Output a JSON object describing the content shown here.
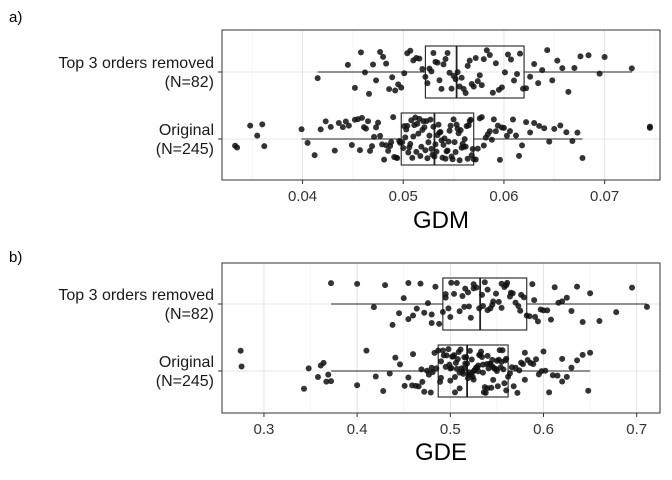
{
  "chart_data": [
    {
      "panel_label": "a)",
      "type": "boxplot",
      "xlabel": "GDM",
      "xlim": [
        0.032,
        0.0755
      ],
      "xticks": [
        0.04,
        0.05,
        0.06,
        0.07
      ],
      "xtick_labels": [
        "0.04",
        "0.05",
        "0.06",
        "0.07"
      ],
      "grid": true,
      "categories": [
        {
          "label": "Top 3 orders removed\n(N=82)",
          "min": 0.0415,
          "q1": 0.0522,
          "median": 0.0553,
          "q3": 0.062,
          "max": 0.0727,
          "points": [
            0.0415,
            0.0445,
            0.0452,
            0.0458,
            0.0462,
            0.0466,
            0.047,
            0.0473,
            0.0477,
            0.048,
            0.0483,
            0.0486,
            0.0489,
            0.0492,
            0.0495,
            0.0498,
            0.0501,
            0.0504,
            0.0507,
            0.051,
            0.0513,
            0.0516,
            0.0519,
            0.0522,
            0.0524,
            0.0526,
            0.0528,
            0.053,
            0.0532,
            0.0534,
            0.0536,
            0.0538,
            0.054,
            0.0542,
            0.0544,
            0.0546,
            0.0548,
            0.055,
            0.0552,
            0.0554,
            0.0556,
            0.0558,
            0.056,
            0.0562,
            0.0564,
            0.0566,
            0.0568,
            0.057,
            0.0572,
            0.0574,
            0.0576,
            0.0578,
            0.058,
            0.0583,
            0.0586,
            0.0589,
            0.0592,
            0.0595,
            0.0598,
            0.0601,
            0.0604,
            0.0607,
            0.061,
            0.0613,
            0.0616,
            0.0619,
            0.0622,
            0.0626,
            0.063,
            0.0634,
            0.0638,
            0.0643,
            0.0648,
            0.0653,
            0.0658,
            0.0664,
            0.067,
            0.0676,
            0.0684,
            0.0695,
            0.07,
            0.0727
          ]
        },
        {
          "label": "Original\n(N=245)",
          "min": 0.0399,
          "q1": 0.0498,
          "median": 0.0531,
          "q3": 0.057,
          "max": 0.0678,
          "points": [
            0.0333,
            0.0335,
            0.0348,
            0.0355,
            0.036,
            0.0362,
            0.0399,
            0.0405,
            0.0412,
            0.0418,
            0.0423,
            0.0428,
            0.0432,
            0.0436,
            0.044,
            0.0443,
            0.0446,
            0.0449,
            0.0452,
            0.0455,
            0.0457,
            0.0459,
            0.0461,
            0.0463,
            0.0465,
            0.0467,
            0.0469,
            0.0471,
            0.0473,
            0.0475,
            0.0477,
            0.0479,
            0.0481,
            0.0483,
            0.0485,
            0.0487,
            0.0488,
            0.049,
            0.0491,
            0.0493,
            0.0494,
            0.0496,
            0.0497,
            0.0499,
            0.05,
            0.0501,
            0.0502,
            0.0503,
            0.0504,
            0.0505,
            0.0506,
            0.0507,
            0.0508,
            0.0509,
            0.051,
            0.0511,
            0.0512,
            0.0513,
            0.0514,
            0.0515,
            0.0516,
            0.0517,
            0.0518,
            0.0519,
            0.052,
            0.0521,
            0.0522,
            0.0523,
            0.0524,
            0.0525,
            0.0526,
            0.0527,
            0.0528,
            0.0529,
            0.053,
            0.0531,
            0.0532,
            0.0533,
            0.0534,
            0.0535,
            0.0536,
            0.0537,
            0.0538,
            0.0539,
            0.054,
            0.0541,
            0.0542,
            0.0543,
            0.0544,
            0.0545,
            0.0546,
            0.0547,
            0.0548,
            0.0549,
            0.055,
            0.0551,
            0.0552,
            0.0553,
            0.0554,
            0.0555,
            0.0556,
            0.0557,
            0.0558,
            0.0559,
            0.056,
            0.0561,
            0.0562,
            0.0563,
            0.0564,
            0.0565,
            0.0566,
            0.0567,
            0.0568,
            0.0569,
            0.057,
            0.0572,
            0.0574,
            0.0576,
            0.0578,
            0.058,
            0.0582,
            0.0584,
            0.0586,
            0.0588,
            0.059,
            0.0592,
            0.0594,
            0.0596,
            0.0598,
            0.06,
            0.0603,
            0.0606,
            0.0609,
            0.0612,
            0.0615,
            0.0618,
            0.0622,
            0.0626,
            0.063,
            0.0635,
            0.064,
            0.0645,
            0.065,
            0.0656,
            0.0662,
            0.0668,
            0.0673,
            0.0678,
            0.0745,
            0.0745
          ]
        }
      ]
    },
    {
      "panel_label": "b)",
      "type": "boxplot",
      "xlabel": "GDE",
      "xlim": [
        0.255,
        0.725
      ],
      "xticks": [
        0.3,
        0.4,
        0.5,
        0.6,
        0.7
      ],
      "xtick_labels": [
        "0.3",
        "0.4",
        "0.5",
        "0.6",
        "0.7"
      ],
      "grid": true,
      "categories": [
        {
          "label": "Top 3 orders removed\n(N=82)",
          "min": 0.372,
          "q1": 0.492,
          "median": 0.532,
          "q3": 0.582,
          "max": 0.711,
          "points": [
            0.372,
            0.4,
            0.418,
            0.43,
            0.438,
            0.445,
            0.45,
            0.455,
            0.46,
            0.464,
            0.468,
            0.472,
            0.476,
            0.48,
            0.484,
            0.488,
            0.492,
            0.495,
            0.498,
            0.501,
            0.504,
            0.507,
            0.51,
            0.513,
            0.516,
            0.519,
            0.522,
            0.525,
            0.528,
            0.531,
            0.534,
            0.537,
            0.54,
            0.543,
            0.546,
            0.549,
            0.552,
            0.555,
            0.558,
            0.561,
            0.564,
            0.567,
            0.57,
            0.573,
            0.576,
            0.579,
            0.582,
            0.585,
            0.588,
            0.591,
            0.594,
            0.597,
            0.6,
            0.604,
            0.608,
            0.612,
            0.616,
            0.62,
            0.625,
            0.63,
            0.636,
            0.642,
            0.65,
            0.66,
            0.678,
            0.695,
            0.711,
            0.48,
            0.5,
            0.52,
            0.54,
            0.56,
            0.455,
            0.515,
            0.535,
            0.555,
            0.575,
            0.495,
            0.525,
            0.545,
            0.565,
            0.59
          ]
        },
        {
          "label": "Original\n(N=245)",
          "min": 0.372,
          "q1": 0.487,
          "median": 0.518,
          "q3": 0.562,
          "max": 0.65,
          "points": [
            0.275,
            0.276,
            0.343,
            0.348,
            0.358,
            0.361,
            0.364,
            0.367,
            0.369,
            0.372,
            0.4,
            0.41,
            0.42,
            0.428,
            0.435,
            0.441,
            0.446,
            0.451,
            0.455,
            0.459,
            0.463,
            0.466,
            0.469,
            0.472,
            0.475,
            0.477,
            0.479,
            0.481,
            0.483,
            0.485,
            0.487,
            0.489,
            0.49,
            0.492,
            0.493,
            0.495,
            0.496,
            0.498,
            0.499,
            0.5,
            0.501,
            0.502,
            0.503,
            0.504,
            0.505,
            0.506,
            0.507,
            0.508,
            0.509,
            0.51,
            0.511,
            0.512,
            0.513,
            0.514,
            0.515,
            0.516,
            0.517,
            0.518,
            0.519,
            0.52,
            0.521,
            0.522,
            0.523,
            0.524,
            0.525,
            0.526,
            0.527,
            0.528,
            0.529,
            0.53,
            0.531,
            0.532,
            0.533,
            0.534,
            0.535,
            0.536,
            0.537,
            0.538,
            0.539,
            0.54,
            0.541,
            0.542,
            0.543,
            0.544,
            0.545,
            0.546,
            0.547,
            0.548,
            0.549,
            0.55,
            0.551,
            0.552,
            0.553,
            0.554,
            0.555,
            0.556,
            0.557,
            0.558,
            0.559,
            0.56,
            0.562,
            0.564,
            0.566,
            0.568,
            0.57,
            0.572,
            0.574,
            0.576,
            0.578,
            0.58,
            0.583,
            0.586,
            0.589,
            0.592,
            0.595,
            0.598,
            0.602,
            0.606,
            0.61,
            0.615,
            0.62,
            0.625,
            0.63,
            0.636,
            0.642,
            0.648,
            0.65,
            0.47,
            0.49,
            0.51,
            0.53,
            0.55,
            0.46,
            0.48,
            0.5,
            0.52,
            0.54,
            0.56,
            0.58,
            0.6,
            0.62,
            0.505,
            0.515,
            0.525,
            0.535,
            0.545
          ]
        }
      ]
    }
  ]
}
